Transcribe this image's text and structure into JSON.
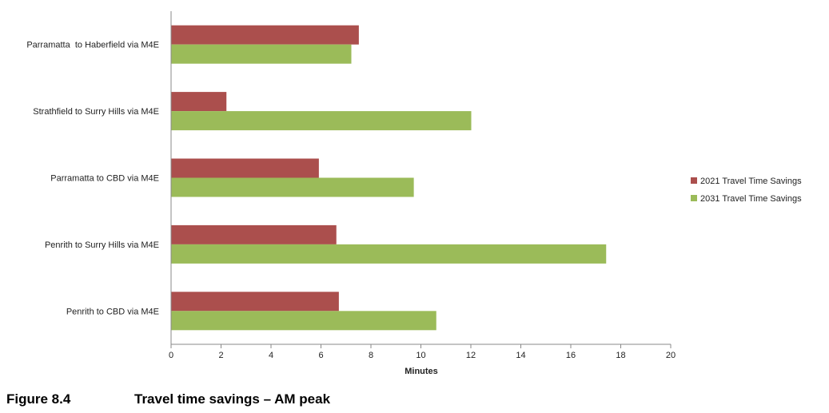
{
  "caption": {
    "figure_number": "Figure 8.4",
    "title": "Travel time savings – AM peak"
  },
  "chart_data": {
    "type": "bar",
    "orientation": "horizontal",
    "categories": [
      "Parramatta  to Haberfield via M4E",
      "Strathfield to Surry Hills via M4E",
      "Parramatta to CBD via M4E",
      "Penrith to Surry Hills via M4E",
      "Penrith to CBD via M4E"
    ],
    "series": [
      {
        "name": "2021 Travel Time Savings",
        "color": "#ab4f4d",
        "values": [
          7.5,
          2.2,
          5.9,
          6.6,
          6.7
        ]
      },
      {
        "name": "2031 Travel Time Savings",
        "color": "#9bbb59",
        "values": [
          7.2,
          12.0,
          9.7,
          17.4,
          10.6
        ]
      }
    ],
    "xlabel": "Minutes",
    "xlim": [
      0,
      20
    ],
    "xticks": [
      0,
      2,
      4,
      6,
      8,
      10,
      12,
      14,
      16,
      18,
      20
    ],
    "grid": false,
    "legend_position": "right"
  }
}
